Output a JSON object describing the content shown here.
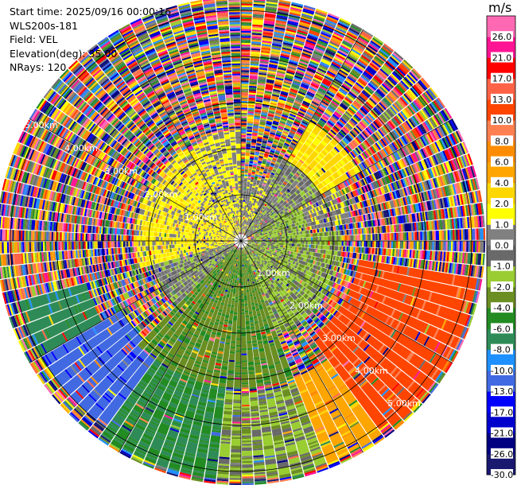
{
  "info": {
    "start_time": "Start time: 2025/09/16 00:00:16",
    "instrument": "WLS200s-181",
    "field": "Field: VEL",
    "elevation": "Elevation(deg): 35.00",
    "nrays": "NRays: 120"
  },
  "chart_data": {
    "type": "heatmap",
    "projection": "polar-ppi",
    "field": "VEL",
    "units": "m/s",
    "range_rings_km": [
      1,
      2,
      3,
      4,
      5
    ],
    "ring_labels": [
      "1.00km",
      "2.00km",
      "3.00km",
      "4.00km",
      "5.00km"
    ],
    "max_range_km": 5.3,
    "nrays": 120,
    "gates_per_km": 27,
    "azimuth_spokes_deg": [
      0,
      30,
      60,
      90,
      120,
      150,
      180,
      210,
      240,
      270,
      300,
      330
    ],
    "colorbar": {
      "title": "m/s",
      "ticks": [
        "-30.0",
        "-26.0",
        "-21.0",
        "-17.0",
        "-13.0",
        "-10.0",
        "-8.0",
        "-6.0",
        "-4.0",
        "-2.0",
        "-1.0",
        "0.0",
        "1.0",
        "2.0",
        "4.0",
        "6.0",
        "8.0",
        "10.0",
        "13.0",
        "17.0",
        "21.0",
        "26.0"
      ],
      "colors": [
        "#191970",
        "#000080",
        "#0000cd",
        "#0000ff",
        "#4169e1",
        "#1e90ff",
        "#2e8b57",
        "#228b22",
        "#6b8e23",
        "#9acd32",
        "#696969",
        "#808080",
        "#ffff00",
        "#ffd700",
        "#ffa500",
        "#ff8c00",
        "#ff7f50",
        "#ff4500",
        "#ff6347",
        "#ff0000",
        "#ff1493",
        "#ff69b4"
      ]
    },
    "sectors": [
      {
        "az_from": 255,
        "az_to": 340,
        "r_from": 0.15,
        "r_to": 2.3,
        "velocity": 1.5
      },
      {
        "az_from": 340,
        "az_to": 360,
        "r_from": 0.2,
        "r_to": 2.4,
        "velocity": 1.0
      },
      {
        "az_from": 0,
        "az_to": 30,
        "r_from": 0.2,
        "r_to": 1.4,
        "velocity": 0.5
      },
      {
        "az_from": 25,
        "az_to": 60,
        "r_from": 0.2,
        "r_to": 2.0,
        "velocity": -0.5
      },
      {
        "az_from": 60,
        "az_to": 85,
        "r_from": 0.3,
        "r_to": 1.5,
        "velocity": -1.5
      },
      {
        "az_from": 85,
        "az_to": 160,
        "r_from": 0.1,
        "r_to": 2.2,
        "velocity": -1.5
      },
      {
        "az_from": 160,
        "az_to": 225,
        "r_from": 0.2,
        "r_to": 3.2,
        "velocity": -3.5
      },
      {
        "az_from": 225,
        "az_to": 255,
        "r_from": 0.2,
        "r_to": 2.0,
        "velocity": -0.5
      },
      {
        "az_from": 30,
        "az_to": 60,
        "r_from": 1.8,
        "r_to": 3.0,
        "velocity": 2.5
      },
      {
        "az_from": 60,
        "az_to": 80,
        "r_from": 1.4,
        "r_to": 2.4,
        "velocity": 0.5
      },
      {
        "az_from": 100,
        "az_to": 145,
        "r_from": 2.6,
        "r_to": 5.2,
        "velocity": 11.0
      },
      {
        "az_from": 140,
        "az_to": 160,
        "r_from": 3.2,
        "r_to": 5.2,
        "velocity": 5.0
      },
      {
        "az_from": 160,
        "az_to": 185,
        "r_from": 3.3,
        "r_to": 5.2,
        "velocity": -1.5
      },
      {
        "az_from": 185,
        "az_to": 215,
        "r_from": 3.0,
        "r_to": 5.2,
        "velocity": -6.0
      },
      {
        "az_from": 215,
        "az_to": 240,
        "r_from": 3.0,
        "r_to": 5.0,
        "velocity": -12.0
      },
      {
        "az_from": 240,
        "az_to": 255,
        "r_from": 3.5,
        "r_to": 5.0,
        "velocity": -7.0
      }
    ]
  }
}
